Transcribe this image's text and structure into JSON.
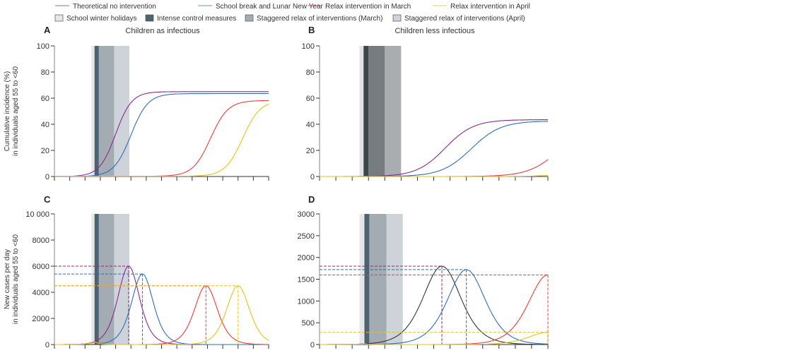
{
  "legend": {
    "lines": [
      {
        "label": "Theoretical no intervention",
        "color": "#8B2A8E"
      },
      {
        "label": "School break and Lunar New Year",
        "color": "#2E6DB4"
      },
      {
        "label": "Relax intervention in March",
        "color": "#EE3B3B"
      },
      {
        "label": "Relax intervention in April",
        "color": "#E8C21A"
      }
    ],
    "boxes": [
      {
        "label": "School winter holidays",
        "color": "#E4E6E8"
      },
      {
        "label": "Intense control measures",
        "color": "#4C6470"
      },
      {
        "label": "Staggered relax of interventions (March)",
        "color": "#A3ACB2"
      },
      {
        "label": "Staggered relax of interventions (April)",
        "color": "#CDD3D8"
      }
    ]
  },
  "chart_data": [
    {
      "panel": "A",
      "type": "line",
      "title": "Children as infectious",
      "ylabel": "Cumulative incidence (%) in individuals aged 55 to <60",
      "ylim": [
        0,
        100
      ],
      "yticks": [
        "0",
        "20",
        "40",
        "60",
        "80",
        "100"
      ],
      "x_ticks_count": 15,
      "shading": {
        "winter_holidays": [
          2.42,
          2.62
        ],
        "intense": [
          2.62,
          2.9
        ],
        "staggered_march": [
          2.9,
          3.9
        ],
        "staggered_april": [
          3.9,
          4.9
        ]
      },
      "series": [
        {
          "name": "Theoretical no intervention",
          "kind": "sigmoid",
          "plateau": 65,
          "mid": 4.0,
          "k": 1.9
        },
        {
          "name": "School break and Lunar New Year",
          "kind": "sigmoid",
          "plateau": 63.5,
          "mid": 5.0,
          "k": 1.8
        },
        {
          "name": "Relax intervention in March",
          "kind": "sigmoid",
          "plateau": 60,
          "mid": 10.2,
          "k": 1.75,
          "base": 2
        },
        {
          "name": "Relax intervention in April",
          "kind": "sigmoid",
          "plateau": 60,
          "mid": 12.3,
          "k": 1.75,
          "base": 2
        }
      ]
    },
    {
      "panel": "B",
      "type": "line",
      "title": "Children less infectious",
      "ylim": [
        0,
        100
      ],
      "yticks": [
        "0",
        "20",
        "40",
        "60",
        "80",
        "100"
      ],
      "x_ticks_count": 15,
      "shading": {
        "winter_holidays": [
          2.45,
          2.7
        ],
        "intense": [
          2.7,
          3.0
        ],
        "staggered_march": [
          3.0,
          4.0
        ],
        "staggered_april": [
          4.0,
          5.0
        ]
      },
      "series": [
        {
          "name": "Theoretical no intervention",
          "kind": "sigmoid",
          "plateau": 43.5,
          "mid": 7.7,
          "k": 1.15
        },
        {
          "name": "School break and Lunar New Year",
          "kind": "sigmoid",
          "plateau": 42.5,
          "mid": 9.3,
          "k": 1.1
        },
        {
          "name": "Relax intervention in March",
          "kind": "sigmoid",
          "plateau": 43,
          "mid": 14.8,
          "k": 1.05
        },
        {
          "name": "Relax intervention in April",
          "kind": "sigmoid",
          "plateau": 43,
          "mid": 17.8,
          "k": 1.0
        }
      ]
    },
    {
      "panel": "C",
      "type": "line",
      "ylabel": "New cases per day in individuals aged 55 to <60",
      "ylim": [
        0,
        10000
      ],
      "yticks": [
        "0",
        "2000",
        "4000",
        "6000",
        "8000",
        "10 000"
      ],
      "x_ticks_count": 15,
      "shading": {
        "winter_holidays": [
          2.42,
          2.62
        ],
        "intense": [
          2.62,
          2.9
        ],
        "staggered_march": [
          2.9,
          3.9
        ],
        "staggered_april": [
          3.9,
          4.9
        ]
      },
      "series": [
        {
          "name": "Theoretical no intervention",
          "peak": 6000,
          "peak_x": 4.85,
          "width": 0.95
        },
        {
          "name": "School break and Lunar New Year",
          "peak": 5400,
          "peak_x": 5.75,
          "width": 0.95
        },
        {
          "name": "Relax intervention in March",
          "peak": 4500,
          "peak_x": 9.9,
          "width": 1.0
        },
        {
          "name": "Relax intervention in April",
          "peak": 4500,
          "peak_x": 12.0,
          "width": 1.0
        }
      ],
      "peak_markers": [
        6000,
        5400,
        4500,
        4500
      ]
    },
    {
      "panel": "D",
      "type": "line",
      "ylim": [
        0,
        3000
      ],
      "yticks": [
        "0",
        "500",
        "1000",
        "1500",
        "2000",
        "2500",
        "3000"
      ],
      "x_ticks_count": 15,
      "shading": {
        "winter_holidays": [
          2.45,
          2.75
        ],
        "intense": [
          2.75,
          3.05
        ],
        "staggered_march": [
          3.05,
          4.1
        ],
        "staggered_april": [
          4.1,
          5.1
        ]
      },
      "series": [
        {
          "name": "Theoretical no intervention",
          "peak": 1800,
          "peak_x": 7.5,
          "width": 1.55
        },
        {
          "name": "School break and Lunar New Year",
          "peak": 1720,
          "peak_x": 9.0,
          "width": 1.55
        },
        {
          "name": "Relax intervention in March",
          "peak": 1600,
          "peak_x": 14.0,
          "width": 1.6
        },
        {
          "name": "Relax intervention in April",
          "peak": 280,
          "peak_x": 14.0,
          "width": 1.6
        }
      ],
      "peak_markers": [
        1800,
        1720,
        1600,
        280
      ]
    }
  ]
}
